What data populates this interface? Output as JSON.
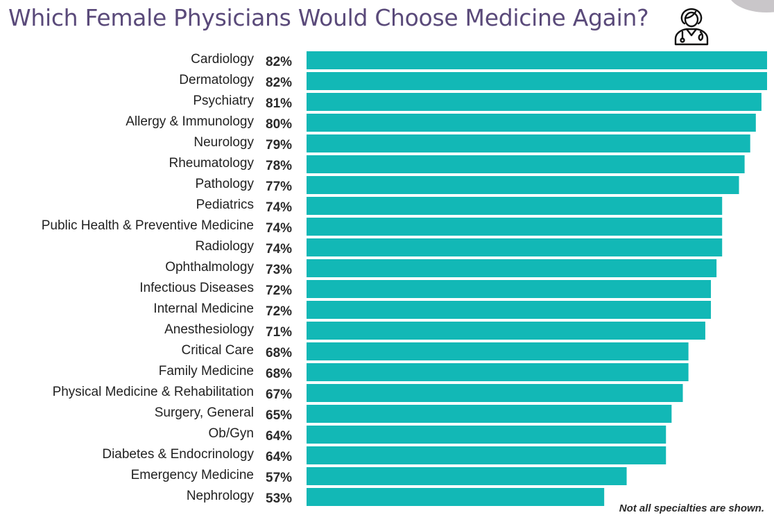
{
  "colors": {
    "bar": "#12b8b6",
    "title": "#5a4a7a"
  },
  "title": "Which Female Physicians Would Choose Medicine Again?",
  "icon": "female-physician-icon",
  "footnote": "Not all specialties are shown.",
  "chart_data": {
    "type": "bar",
    "orientation": "horizontal",
    "title": "Which Female Physicians Would Choose Medicine Again?",
    "xlabel": "",
    "ylabel": "",
    "unit": "%",
    "xlim": [
      0,
      82
    ],
    "categories": [
      "Cardiology",
      "Dermatology",
      "Psychiatry",
      "Allergy & Immunology",
      "Neurology",
      "Rheumatology",
      "Pathology",
      "Pediatrics",
      "Public Health & Preventive Medicine",
      "Radiology",
      "Ophthalmology",
      "Infectious Diseases",
      "Internal Medicine",
      "Anesthesiology",
      "Critical Care",
      "Family Medicine",
      "Physical Medicine & Rehabilitation",
      "Surgery, General",
      "Ob/Gyn",
      "Diabetes & Endocrinology",
      "Emergency Medicine",
      "Nephrology"
    ],
    "values": [
      82,
      82,
      81,
      80,
      79,
      78,
      77,
      74,
      74,
      74,
      73,
      72,
      72,
      71,
      68,
      68,
      67,
      65,
      64,
      64,
      57,
      53
    ],
    "value_labels": [
      "82%",
      "82%",
      "81%",
      "80%",
      "79%",
      "78%",
      "77%",
      "74%",
      "74%",
      "74%",
      "73%",
      "72%",
      "72%",
      "71%",
      "68%",
      "68%",
      "67%",
      "65%",
      "64%",
      "64%",
      "57%",
      "53%"
    ]
  }
}
